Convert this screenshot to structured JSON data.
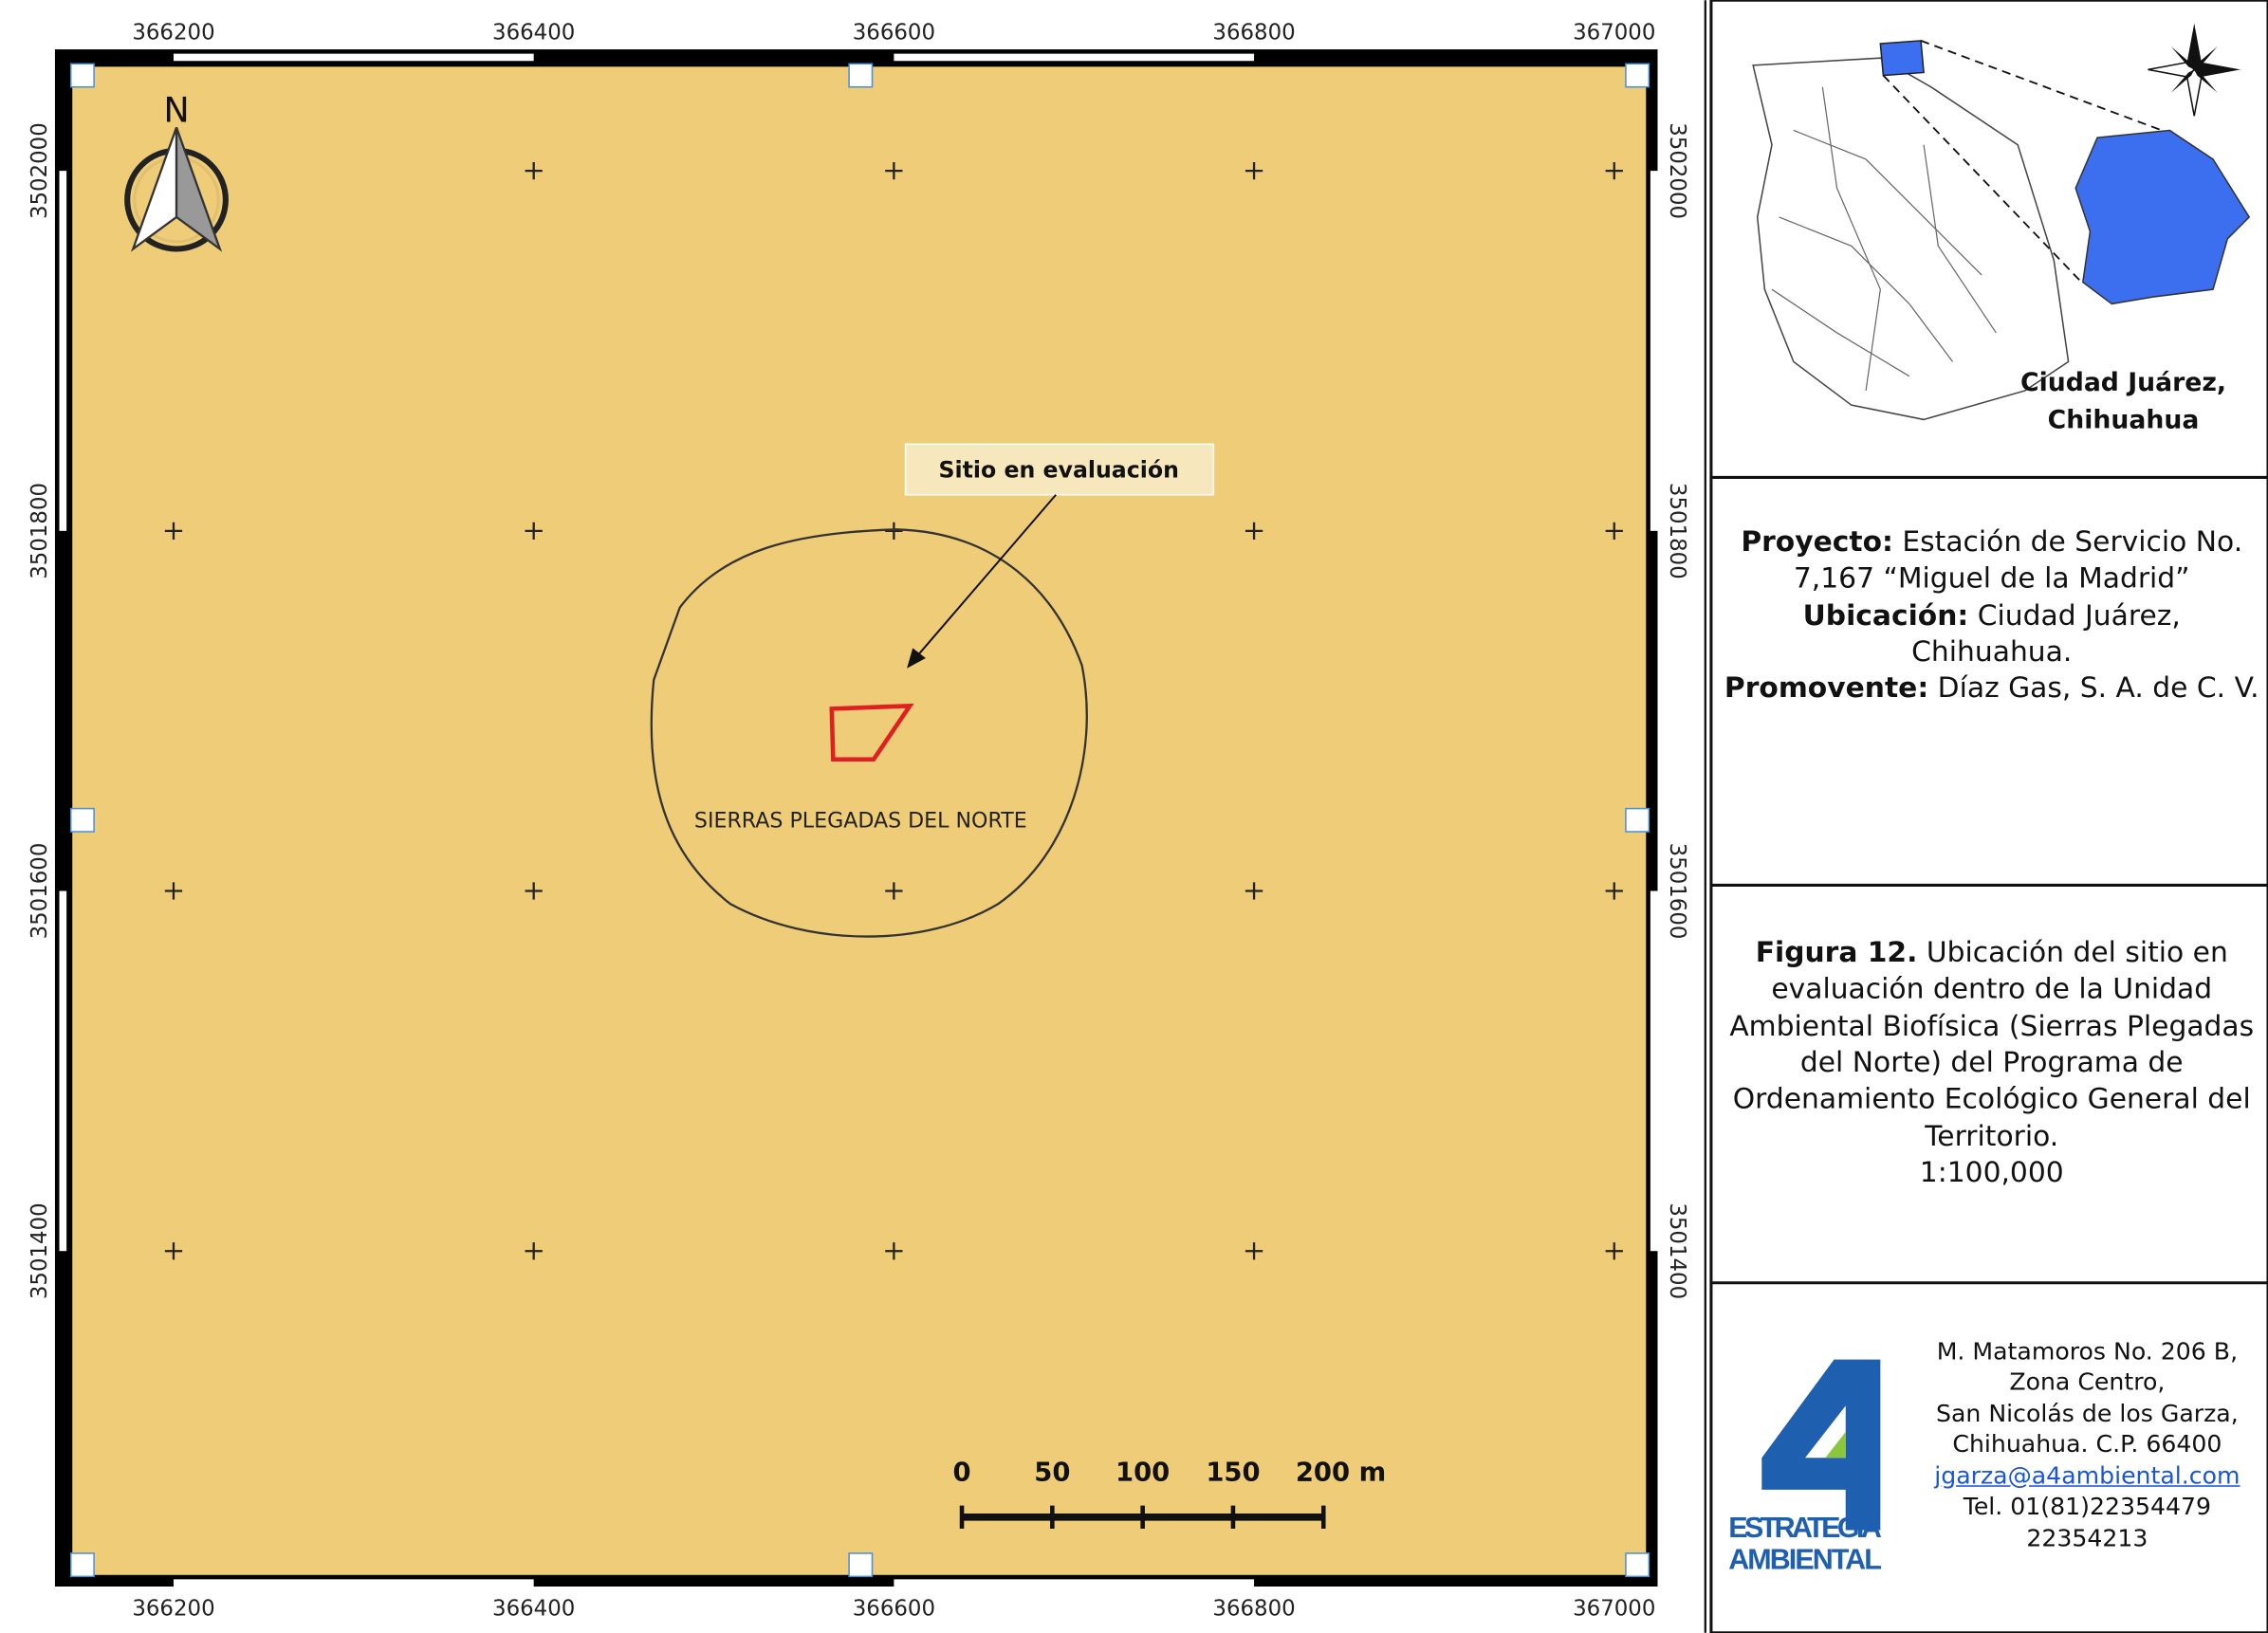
{
  "map": {
    "x_labels": [
      366200,
      366400,
      366600,
      366800,
      367000
    ],
    "y_labels": [
      3502000,
      3501800,
      3501600,
      3501400
    ],
    "north": "N",
    "site_label": "Sitio en evaluación",
    "zone_label": "SIERRAS PLEGADAS DEL NORTE",
    "scale_labels": [
      "0",
      "50",
      "100",
      "150",
      "200 m"
    ]
  },
  "inset": {
    "label_line1": "Ciudad Juárez,",
    "label_line2": "Chihuahua"
  },
  "project": {
    "project_label": "Proyecto:",
    "project_value": "Estación de Servicio No. 7,167 “Miguel de la Madrid”",
    "location_label": "Ubicación:",
    "location_value": "Ciudad Juárez, Chihuahua.",
    "promoter_label": "Promovente:",
    "promoter_value": "Díaz Gas, S. A. de C. V."
  },
  "figure": {
    "label": "Figura 12.",
    "caption": "Ubicación del sitio en evaluación dentro de la Unidad Ambiental Biofísica (Sierras Plegadas del Norte) del Programa de Ordenamiento Ecológico General del Territorio.",
    "scale": "1:100,000"
  },
  "company": {
    "logo_line1": "ESTRATEGIA",
    "logo_line2": "AMBIENTAL",
    "address": [
      "M. Matamoros No. 206 B,",
      "Zona Centro,",
      "San Nicolás de los Garza,",
      "Chihuahua. C.P. 66400"
    ],
    "email": "jgarza@a4ambiental.com",
    "phone": [
      "Tel. 01(81)22354479",
      "22354213"
    ]
  }
}
